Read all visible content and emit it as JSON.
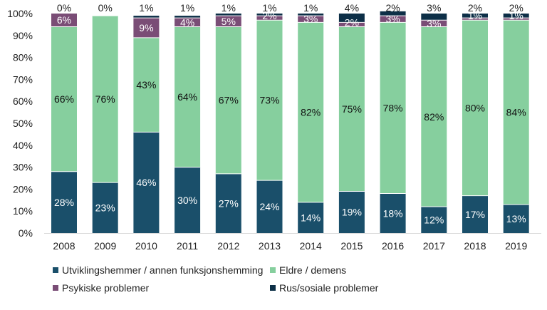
{
  "chart_data": {
    "type": "bar",
    "stacked": true,
    "percent": true,
    "categories": [
      "2008",
      "2009",
      "2010",
      "2011",
      "2012",
      "2013",
      "2014",
      "2015",
      "2016",
      "2017",
      "2018",
      "2019"
    ],
    "series": [
      {
        "name": "Utviklingshemmer / annen funksjonshemming",
        "color": "#1a4f6a",
        "values": [
          28,
          23,
          46,
          30,
          27,
          24,
          14,
          19,
          18,
          12,
          17,
          13
        ],
        "labels": [
          "28%",
          "23%",
          "46%",
          "30%",
          "27%",
          "24%",
          "14%",
          "19%",
          "18%",
          "12%",
          "17%",
          "13%"
        ]
      },
      {
        "name": "Eldre / demens",
        "color": "#86cf9e",
        "values": [
          66,
          76,
          43,
          64,
          67,
          73,
          82,
          75,
          78,
          82,
          80,
          84
        ],
        "labels": [
          "66%",
          "76%",
          "43%",
          "64%",
          "67%",
          "73%",
          "82%",
          "75%",
          "78%",
          "82%",
          "80%",
          "84%"
        ]
      },
      {
        "name": "Psykiske problemer",
        "color": "#7a4d76",
        "values": [
          6,
          0,
          9,
          4,
          5,
          2,
          3,
          2,
          3,
          3,
          1,
          1
        ],
        "labels": [
          "6%",
          "0%",
          "9%",
          "4%",
          "5%",
          "2%",
          "3%",
          "2%",
          "3%",
          "3%",
          "1%",
          "1%"
        ]
      },
      {
        "name": "Rus/sosiale problemer",
        "color": "#0d2f47",
        "values": [
          0,
          0,
          1,
          1,
          1,
          1,
          1,
          4,
          2,
          3,
          2,
          2
        ],
        "labels": [
          "0%",
          "0%",
          "1%",
          "1%",
          "1%",
          "1%",
          "1%",
          "4%",
          "2%",
          "3%",
          "2%",
          "2%"
        ]
      }
    ],
    "y_ticks": [
      "0%",
      "10%",
      "20%",
      "30%",
      "40%",
      "50%",
      "60%",
      "70%",
      "80%",
      "90%",
      "100%"
    ],
    "ylim": [
      0,
      100
    ],
    "title": "",
    "xlabel": "",
    "ylabel": "",
    "legend_position": "bottom"
  }
}
